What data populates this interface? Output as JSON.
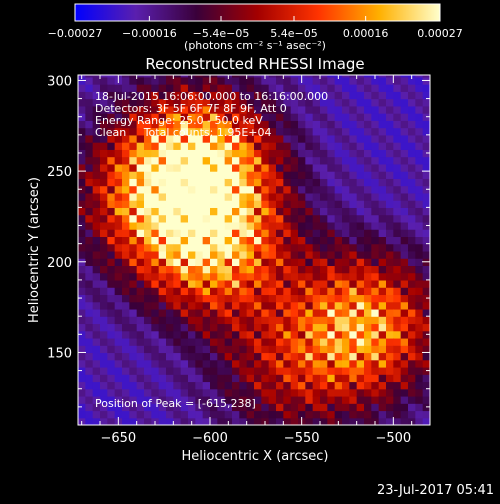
{
  "chart_data": {
    "type": "heatmap",
    "title": "Reconstructed RHESSI Image",
    "xlabel": "Heliocentric X (arcsec)",
    "ylabel": "Heliocentric Y (arcsec)",
    "xlim": [
      -672,
      -480
    ],
    "ylim": [
      110,
      303
    ],
    "x_ticks": [
      -650,
      -600,
      -550,
      -500
    ],
    "x_tick_labels": [
      "−650",
      "−600",
      "−550",
      "−500"
    ],
    "y_ticks": [
      150,
      200,
      250,
      300
    ],
    "y_tick_labels": [
      "150",
      "200",
      "250",
      "300"
    ],
    "colorbar": {
      "range": [
        -0.00027,
        0.00027
      ],
      "ticks": [
        -0.00027,
        -0.00016,
        -5.4e-05,
        5.4e-05,
        0.00016,
        0.00027
      ],
      "tick_labels": [
        "−0.00027",
        "−0.00016",
        "−5.4e−05",
        "5.4e−05",
        "0.00016",
        "0.00027"
      ],
      "unit_text": "(photons cm⁻² s⁻¹ asec⁻²)",
      "colors": [
        "#0000ff",
        "#5a1fae",
        "#3a003a",
        "#a30000",
        "#ff3300",
        "#ffb000",
        "#ffffcc"
      ]
    },
    "peak": {
      "x": -615,
      "y": 238
    },
    "sources": [
      {
        "x": -605,
        "y": 255,
        "level": 1.0
      },
      {
        "x": -597,
        "y": 208,
        "level": 0.85
      },
      {
        "x": -635,
        "y": 235,
        "level": 0.55
      },
      {
        "x": -516,
        "y": 165,
        "level": 0.9
      },
      {
        "x": -560,
        "y": 140,
        "level": 0.4
      }
    ],
    "grid": false
  },
  "annotations": [
    "18-Jul-2015 16:06:00.000 to 16:16:00.000",
    "Detectors: 3F 5F 6F 7F 8F 9F, Att 0",
    "Energy Range: 25.0 - 50.0 keV",
    "Clean     Total counts: 1.95E+04"
  ],
  "peak_text": "Position of Peak = [-615,238]",
  "timestamp": "23-Jul-2017 05:41"
}
